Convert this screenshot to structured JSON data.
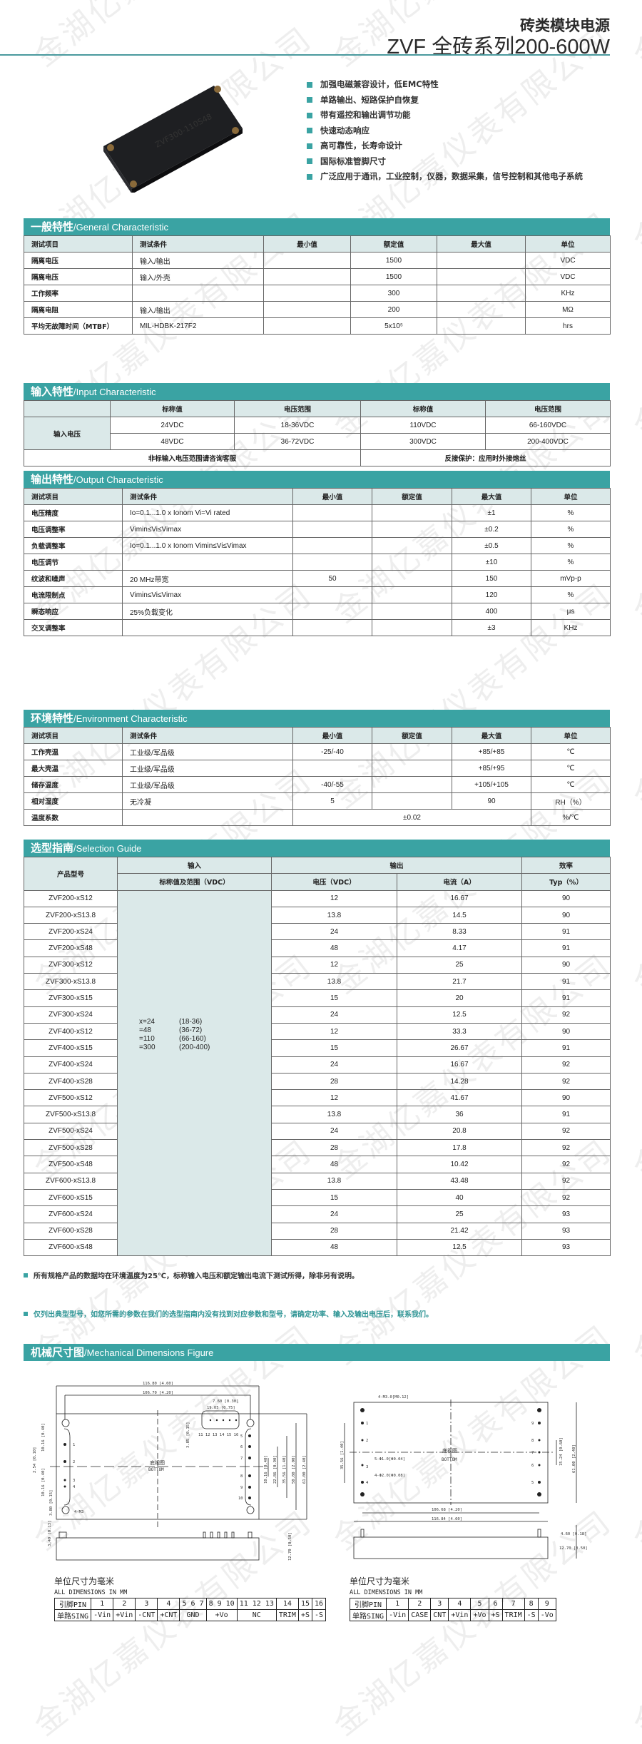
{
  "watermark": "金湖亿嘉仪表有限公司",
  "colors": {
    "accent": "#3aa3a3",
    "header_row": "#dbe9e9"
  },
  "header": {
    "title_cn": "砖类模块电源",
    "title_en": "ZVF 全砖系列200-600W"
  },
  "product_image": {
    "label": "ZVF300-110S48"
  },
  "features": [
    "加强电磁兼容设计，低EMC特性",
    "单路输出、短路保护自恢复",
    "带有遥控和输出调节功能",
    "快速动态响应",
    "高可靠性，长寿命设计",
    "国际标准管脚尺寸",
    "广泛应用于通讯，工业控制，仪器，数据采集，信号控制和其他电子系统"
  ],
  "general": {
    "title_cn": "一般特性",
    "title_en": "/General Characteristic",
    "headers": [
      "测试项目",
      "测试条件",
      "最小值",
      "额定值",
      "最大值",
      "单位"
    ],
    "rows": [
      [
        "隔离电压",
        "输入/输出",
        "",
        "1500",
        "",
        "VDC"
      ],
      [
        "隔离电压",
        "输入/外壳",
        "",
        "1500",
        "",
        "VDC"
      ],
      [
        "工作频率",
        "",
        "",
        "300",
        "",
        "KHz"
      ],
      [
        "隔离电阻",
        "输入/输出",
        "",
        "200",
        "",
        "MΩ"
      ],
      [
        "平均无故障时间（MTBF）",
        "MIL-HDBK-217F2",
        "",
        "5x10⁵",
        "",
        "hrs"
      ]
    ]
  },
  "input": {
    "title_cn": "输入特性",
    "title_en": "/Input Characteristic",
    "headers": [
      "标称值",
      "电压范围",
      "标称值",
      "电压范围"
    ],
    "row_label": "输入电压",
    "rows": [
      [
        "24VDC",
        "18-36VDC",
        "110VDC",
        "66-160VDC"
      ],
      [
        "48VDC",
        "36-72VDC",
        "300VDC",
        "200-400VDC"
      ]
    ],
    "footer_left": "非标输入电压范围请咨询客服",
    "footer_right": "反接保护：应用时外接熔丝"
  },
  "output": {
    "title_cn": "输出特性",
    "title_en": "/Output Characteristic",
    "headers": [
      "测试项目",
      "测试条件",
      "最小值",
      "额定值",
      "最大值",
      "单位"
    ],
    "rows": [
      [
        "电压精度",
        "Io=0.1...1.0 x Ionom Vi=Vi rated",
        "",
        "",
        "±1",
        "%"
      ],
      [
        "电压调整率",
        "Vimin≤Vi≤Vimax",
        "",
        "",
        "±0.2",
        "%"
      ],
      [
        "负载调整率",
        "Io=0.1...1.0 x Ionom Vimin≤Vi≤Vimax",
        "",
        "",
        "±0.5",
        "%"
      ],
      [
        "电压调节",
        "",
        "",
        "",
        "±10",
        "%"
      ],
      [
        "纹波和噪声",
        "20 MHz带宽",
        "50",
        "",
        "150",
        "mVp-p"
      ],
      [
        "电流限制点",
        "Vimin≤Vi≤Vimax",
        "",
        "",
        "120",
        "%"
      ],
      [
        "瞬态响应",
        "25%负载变化",
        "",
        "",
        "400",
        "μs"
      ],
      [
        "交叉调整率",
        "",
        "",
        "",
        "±3",
        "KHz"
      ]
    ]
  },
  "environment": {
    "title_cn": "环境特性",
    "title_en": "/Environment Characteristic",
    "headers": [
      "测试项目",
      "测试条件",
      "最小值",
      "额定值",
      "最大值",
      "单位"
    ],
    "rows": [
      [
        "工作壳温",
        "工业级/军品级",
        "-25/-40",
        "",
        "+85/+85",
        "℃"
      ],
      [
        "最大壳温",
        "工业级/军品级",
        "",
        "",
        "+85/+95",
        "℃"
      ],
      [
        "储存温度",
        "工业级/军品级",
        "-40/-55",
        "",
        "+105/+105",
        "℃"
      ],
      [
        "相对湿度",
        "无冷凝",
        "5",
        "",
        "90",
        "RH（%）"
      ]
    ],
    "last_row": {
      "item": "温度系数",
      "value": "±0.02",
      "unit": "%/℃"
    }
  },
  "selection": {
    "title_cn": "选型指南",
    "title_en": "/Selection Guide",
    "h_model": "产品型号",
    "h_input": "输入",
    "h_output": "输出",
    "h_eff": "效率",
    "h_input_sub": "标称值及范围（VDC）",
    "h_voltage": "电压（VDC）",
    "h_current": "电流（A）",
    "h_typ": "Typ（%）",
    "input_options": [
      [
        "x=24",
        "(18-36)"
      ],
      [
        "=48",
        "(36-72)"
      ],
      [
        "=110",
        "(66-160)"
      ],
      [
        "=300",
        "(200-400)"
      ]
    ],
    "rows": [
      [
        "ZVF200-xS12",
        "12",
        "16.67",
        "90"
      ],
      [
        "ZVF200-xS13.8",
        "13.8",
        "14.5",
        "90"
      ],
      [
        "ZVF200-xS24",
        "24",
        "8.33",
        "91"
      ],
      [
        "ZVF200-xS48",
        "48",
        "4.17",
        "91"
      ],
      [
        "ZVF300-xS12",
        "12",
        "25",
        "90"
      ],
      [
        "ZVF300-xS13.8",
        "13.8",
        "21.7",
        "91"
      ],
      [
        "ZVF300-xS15",
        "15",
        "20",
        "91"
      ],
      [
        "ZVF300-xS24",
        "24",
        "12.5",
        "92"
      ],
      [
        "ZVF400-xS12",
        "12",
        "33.3",
        "90"
      ],
      [
        "ZVF400-xS15",
        "15",
        "26.67",
        "91"
      ],
      [
        "ZVF400-xS24",
        "24",
        "16.67",
        "92"
      ],
      [
        "ZVF400-xS28",
        "28",
        "14.28",
        "92"
      ],
      [
        "ZVF500-xS12",
        "12",
        "41.67",
        "90"
      ],
      [
        "ZVF500-xS13.8",
        "13.8",
        "36",
        "91"
      ],
      [
        "ZVF500-xS24",
        "24",
        "20.8",
        "92"
      ],
      [
        "ZVF500-xS28",
        "28",
        "17.8",
        "92"
      ],
      [
        "ZVF500-xS48",
        "48",
        "10.42",
        "92"
      ],
      [
        "ZVF600-xS13.8",
        "13.8",
        "43.48",
        "92"
      ],
      [
        "ZVF600-xS15",
        "15",
        "40",
        "92"
      ],
      [
        "ZVF600-xS24",
        "24",
        "25",
        "93"
      ],
      [
        "ZVF600-xS28",
        "28",
        "21.42",
        "93"
      ],
      [
        "ZVF600-xS48",
        "48",
        "12.5",
        "93"
      ]
    ]
  },
  "notes": [
    "所有规格产品的数据均在环境温度为25℃，标称输入电压和额定输出电流下测试所得，除非另有说明。",
    "仅列出典型型号，如您所需的参数在我们的选型指南内没有找到对应参数和型号，请确定功率、输入及输出电压后，联系我们。"
  ],
  "mechanical": {
    "title_cn": "机械尺寸图",
    "title_en": "/Mechanical Dimensions Figure",
    "drawing_a": {
      "view_cn": "底视图",
      "view_en": "BOTTOM",
      "dims": [
        "116.80 [4.60]",
        "106.70 [4.20]",
        "7.60 [0.30]",
        "19.05 [0.75]",
        "3.85 [0.15]",
        "10.16 [0.40]",
        "2.54 [0.10]",
        "10.16 [0.40]",
        "3.80 [0.15]",
        "4-M3",
        "10.16 [0.40]",
        "22.86 [0.90]",
        "35.56 [1.40]",
        "50.80 [2.00]",
        "61.00 [2.40]",
        "3.40 [0.13]",
        "12.70 [0.50]"
      ],
      "pin_labels": [
        "1",
        "2",
        "3",
        "4",
        "5",
        "6",
        "7",
        "8",
        "9",
        "10",
        "11 12 13 14 15 16"
      ]
    },
    "drawing_b": {
      "view_cn": "底视图",
      "view_en": "BOTTOM",
      "dims": [
        "4-M3.0[M0.12]",
        "5-Φ1.0[Φ0.04]",
        "4-Φ2.0[Φ0.08]",
        "35.56 [1.40]",
        "15.24 [0.60]",
        "61.00 [2.40]",
        "106.68 [4.20]",
        "116.84 [4.60]",
        "4.60 [0.18]",
        "12.70 [0.50]"
      ],
      "pin_labels": [
        "1",
        "2",
        "3",
        "4",
        "5",
        "6",
        "7",
        "8",
        "9"
      ]
    },
    "unit_cn": "单位尺寸为毫米",
    "unit_en": "ALL DIMENSIONS IN MM",
    "pin_table_a": {
      "pin_label": "引脚PIN",
      "sign_label": "单路SING",
      "pins": [
        "1",
        "2",
        "3",
        "4",
        "5 6 7",
        "8 9 10",
        "11 12 13",
        "14",
        "15",
        "16"
      ],
      "signs": [
        "-Vin",
        "+Vin",
        "-CNT",
        "+CNT",
        "GND",
        "+Vo",
        "NC",
        "TRIM",
        "+S",
        "-S"
      ]
    },
    "pin_table_b": {
      "pin_label": "引脚PIN",
      "sign_label": "单路SING",
      "pins": [
        "1",
        "2",
        "3",
        "4",
        "5",
        "6",
        "7",
        "8",
        "9"
      ],
      "signs": [
        "-Vin",
        "CASE",
        "CNT",
        "+Vin",
        "+Vo",
        "+S",
        "TRIM",
        "-S",
        "-Vo"
      ]
    }
  }
}
